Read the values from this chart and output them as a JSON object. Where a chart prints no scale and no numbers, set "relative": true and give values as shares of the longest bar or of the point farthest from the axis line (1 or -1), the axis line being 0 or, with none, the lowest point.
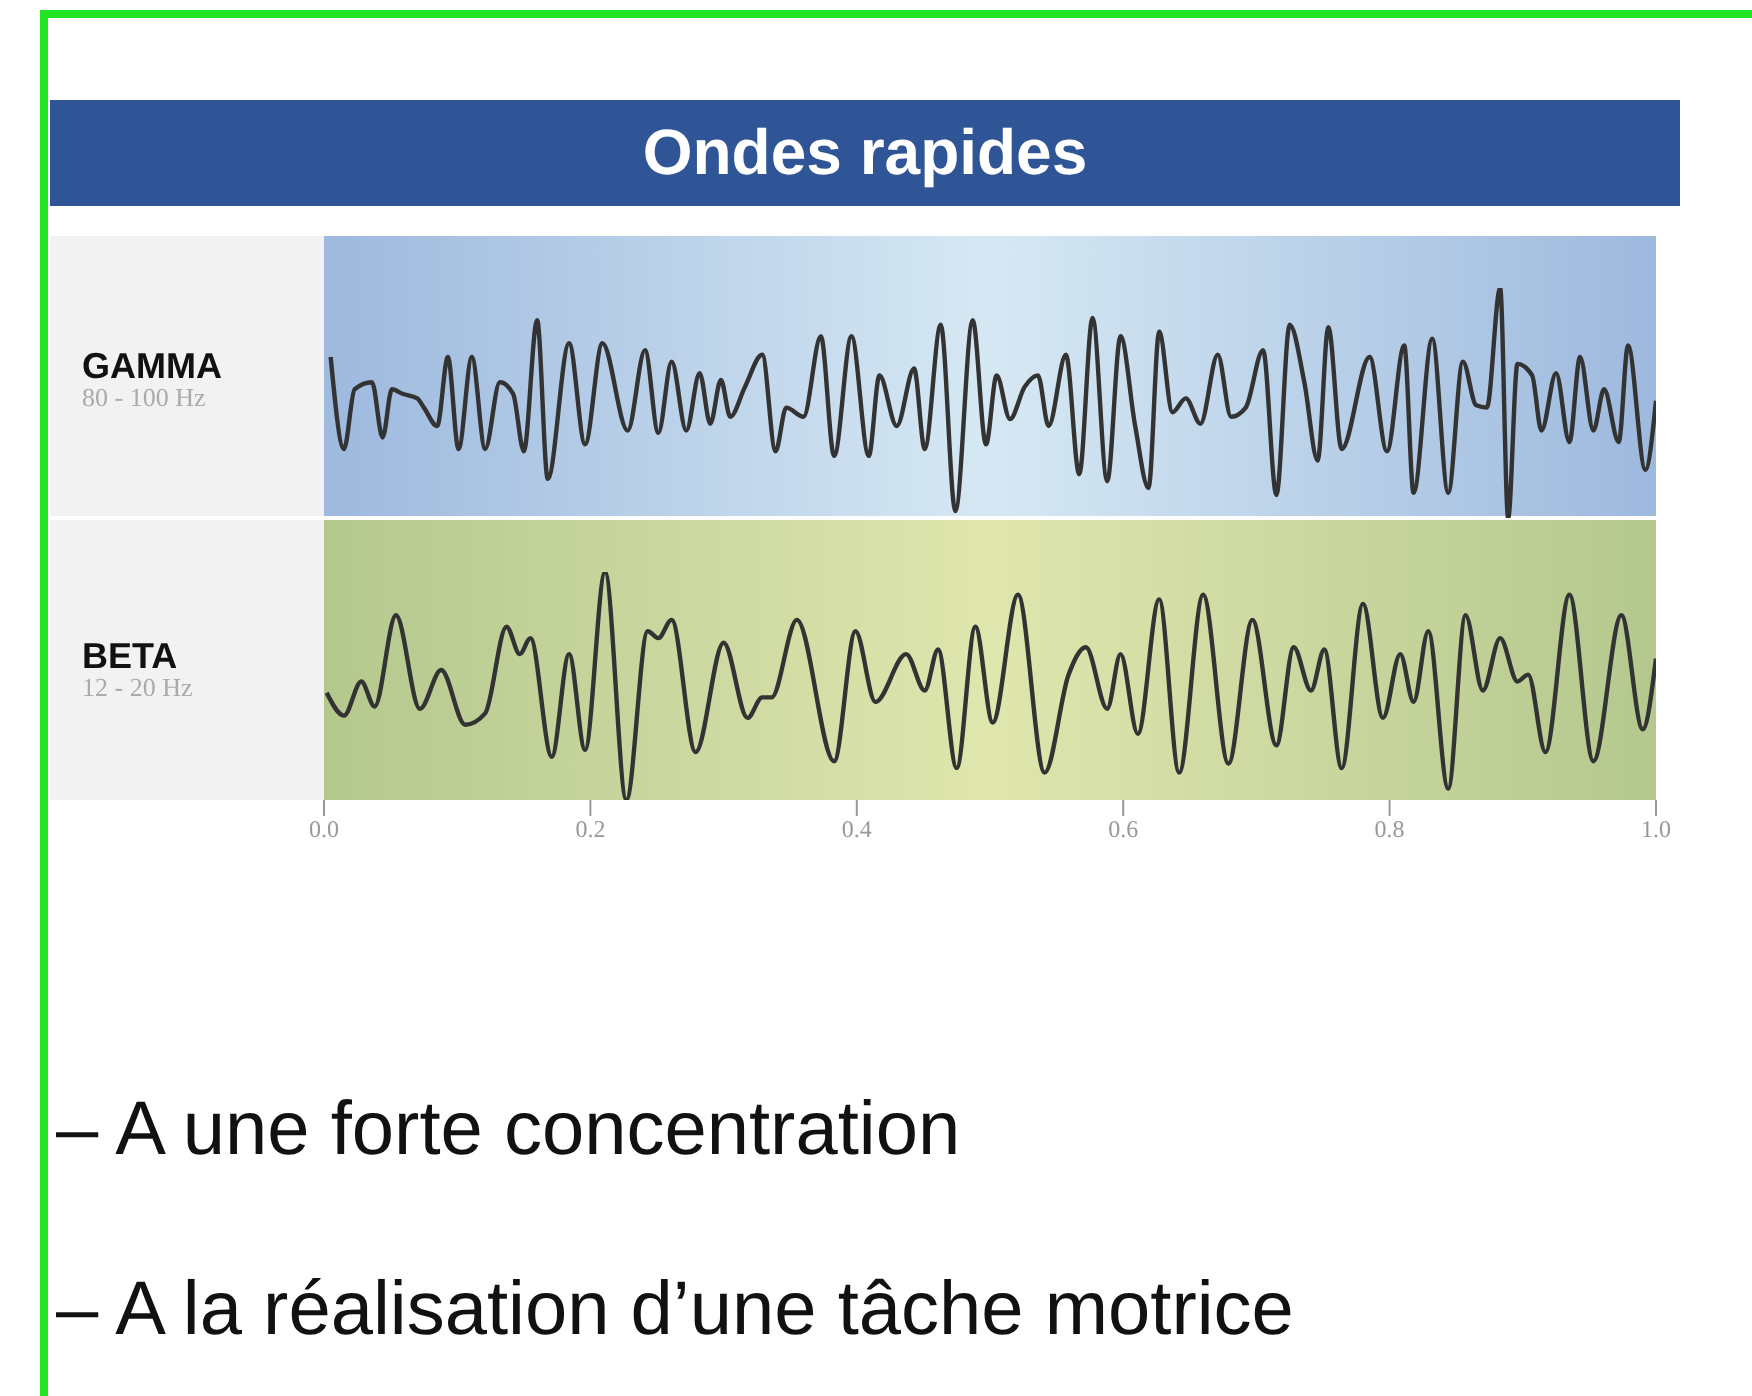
{
  "chart_data": [
    {
      "type": "line",
      "title": "Ondes rapides",
      "subtitle": "80 - 100 Hz",
      "relative": true,
      "marker": "none",
      "line_style": "solid",
      "tick_labels": false,
      "xlim": [
        0,
        1
      ],
      "x": [
        0.005,
        0.015,
        0.023,
        0.036,
        0.044,
        0.051,
        0.059,
        0.07,
        0.075,
        0.085,
        0.093,
        0.101,
        0.111,
        0.121,
        0.132,
        0.142,
        0.15,
        0.16,
        0.168,
        0.184,
        0.196,
        0.209,
        0.228,
        0.241,
        0.251,
        0.261,
        0.272,
        0.282,
        0.29,
        0.298,
        0.305,
        0.316,
        0.329,
        0.339,
        0.347,
        0.36,
        0.373,
        0.383,
        0.396,
        0.409,
        0.417,
        0.43,
        0.443,
        0.451,
        0.463,
        0.474,
        0.487,
        0.497,
        0.505,
        0.515,
        0.526,
        0.536,
        0.544,
        0.557,
        0.567,
        0.577,
        0.588,
        0.598,
        0.609,
        0.619,
        0.627,
        0.637,
        0.647,
        0.658,
        0.671,
        0.681,
        0.692,
        0.705,
        0.715,
        0.725,
        0.736,
        0.746,
        0.754,
        0.764,
        0.785,
        0.798,
        0.811,
        0.818,
        0.832,
        0.844,
        0.855,
        0.865,
        0.873,
        0.883,
        0.889,
        0.896,
        0.907,
        0.914,
        0.925,
        0.935,
        0.943,
        0.953,
        0.961,
        0.972,
        0.979,
        0.992,
        1.0
      ],
      "series": [
        {
          "name": "GAMMA",
          "color": "#333333",
          "values": [
            0.7,
            0.3,
            0.56,
            0.59,
            0.35,
            0.56,
            0.54,
            0.52,
            0.48,
            0.4,
            0.7,
            0.3,
            0.7,
            0.3,
            0.59,
            0.54,
            0.29,
            0.86,
            0.17,
            0.76,
            0.32,
            0.76,
            0.38,
            0.73,
            0.37,
            0.68,
            0.38,
            0.63,
            0.41,
            0.6,
            0.44,
            0.57,
            0.71,
            0.29,
            0.48,
            0.44,
            0.79,
            0.27,
            0.79,
            0.27,
            0.62,
            0.4,
            0.65,
            0.3,
            0.84,
            0.03,
            0.86,
            0.32,
            0.62,
            0.43,
            0.57,
            0.62,
            0.4,
            0.71,
            0.19,
            0.87,
            0.16,
            0.79,
            0.4,
            0.13,
            0.81,
            0.46,
            0.52,
            0.41,
            0.71,
            0.44,
            0.48,
            0.73,
            0.1,
            0.84,
            0.59,
            0.25,
            0.83,
            0.3,
            0.7,
            0.29,
            0.75,
            0.11,
            0.78,
            0.11,
            0.68,
            0.49,
            0.48,
            1.0,
            0.0,
            0.67,
            0.62,
            0.38,
            0.63,
            0.33,
            0.7,
            0.38,
            0.56,
            0.33,
            0.75,
            0.21,
            0.51
          ]
        }
      ]
    },
    {
      "type": "line",
      "subtitle": "12 - 20 Hz",
      "relative": true,
      "marker": "none",
      "line_style": "solid",
      "xlim": [
        0,
        1
      ],
      "xticks": [
        {
          "value": 0,
          "label": "0.0"
        },
        {
          "value": 0.2,
          "label": "0.2"
        },
        {
          "value": 0.4,
          "label": "0.4"
        },
        {
          "value": 0.6,
          "label": "0.6"
        },
        {
          "value": 0.8,
          "label": "0.8"
        },
        {
          "value": 1,
          "label": "1.0"
        }
      ],
      "annotations": [
        "– A une forte concentration",
        "– A la réalisation d’une tâche motrice"
      ],
      "x": [
        0.002,
        0.015,
        0.028,
        0.038,
        0.054,
        0.072,
        0.088,
        0.106,
        0.121,
        0.137,
        0.147,
        0.155,
        0.171,
        0.184,
        0.196,
        0.211,
        0.227,
        0.243,
        0.251,
        0.261,
        0.279,
        0.3,
        0.318,
        0.329,
        0.336,
        0.355,
        0.383,
        0.399,
        0.414,
        0.437,
        0.451,
        0.461,
        0.475,
        0.489,
        0.502,
        0.521,
        0.541,
        0.559,
        0.572,
        0.588,
        0.598,
        0.611,
        0.627,
        0.642,
        0.66,
        0.679,
        0.697,
        0.715,
        0.728,
        0.741,
        0.751,
        0.764,
        0.78,
        0.795,
        0.808,
        0.818,
        0.829,
        0.844,
        0.857,
        0.87,
        0.883,
        0.896,
        0.904,
        0.917,
        0.935,
        0.953,
        0.974,
        0.99,
        1.0
      ],
      "series": [
        {
          "name": "BETA",
          "color": "#333333",
          "values": [
            0.47,
            0.37,
            0.52,
            0.41,
            0.81,
            0.4,
            0.57,
            0.33,
            0.38,
            0.76,
            0.64,
            0.71,
            0.19,
            0.64,
            0.22,
            1.0,
            0.0,
            0.74,
            0.71,
            0.79,
            0.21,
            0.69,
            0.36,
            0.45,
            0.45,
            0.79,
            0.17,
            0.74,
            0.43,
            0.64,
            0.48,
            0.66,
            0.14,
            0.76,
            0.34,
            0.9,
            0.12,
            0.55,
            0.67,
            0.4,
            0.64,
            0.29,
            0.88,
            0.12,
            0.9,
            0.16,
            0.79,
            0.24,
            0.67,
            0.48,
            0.66,
            0.14,
            0.86,
            0.36,
            0.64,
            0.43,
            0.74,
            0.05,
            0.81,
            0.48,
            0.71,
            0.52,
            0.55,
            0.21,
            0.9,
            0.17,
            0.81,
            0.31,
            0.62
          ]
        }
      ]
    }
  ]
}
